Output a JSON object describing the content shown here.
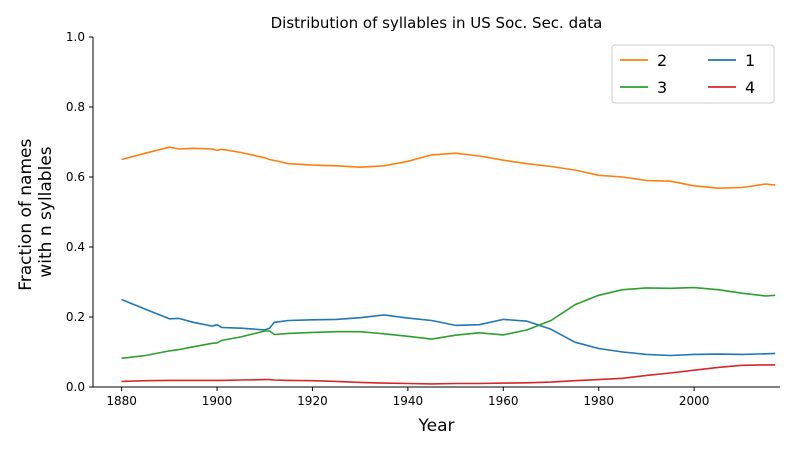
{
  "chart_data": {
    "type": "line",
    "title": "Distribution of syllables in US Soc. Sec. data",
    "xlabel": "Year",
    "ylabel_lines": [
      "Fraction of names",
      "with n syllables"
    ],
    "xlim": [
      1874,
      2018
    ],
    "ylim": [
      0,
      1
    ],
    "xticks": [
      1880,
      1900,
      1920,
      1940,
      1960,
      1980,
      2000
    ],
    "yticks": [
      "0.0",
      "0.2",
      "0.4",
      "0.6",
      "0.8",
      "1.0"
    ],
    "grid": false,
    "legend": {
      "placement": "top-right",
      "columns": 2,
      "order": [
        "2",
        "1",
        "3",
        "4"
      ]
    },
    "x": [
      1880,
      1885,
      1890,
      1892,
      1895,
      1899,
      1900,
      1901,
      1905,
      1910,
      1911,
      1912,
      1915,
      1920,
      1925,
      1930,
      1935,
      1940,
      1945,
      1950,
      1955,
      1960,
      1965,
      1970,
      1975,
      1980,
      1985,
      1990,
      1995,
      2000,
      2005,
      2010,
      2015,
      2017
    ],
    "series": [
      {
        "name": "2",
        "color": "#ff7f0e",
        "values": [
          0.65,
          0.668,
          0.685,
          0.68,
          0.682,
          0.68,
          0.676,
          0.679,
          0.67,
          0.655,
          0.65,
          0.647,
          0.638,
          0.634,
          0.632,
          0.628,
          0.632,
          0.645,
          0.663,
          0.668,
          0.66,
          0.648,
          0.638,
          0.63,
          0.62,
          0.605,
          0.6,
          0.59,
          0.588,
          0.575,
          0.568,
          0.57,
          0.58,
          0.577
        ]
      },
      {
        "name": "1",
        "color": "#1f77b4",
        "values": [
          0.25,
          0.222,
          0.195,
          0.196,
          0.185,
          0.174,
          0.178,
          0.17,
          0.168,
          0.163,
          0.168,
          0.185,
          0.19,
          0.192,
          0.193,
          0.198,
          0.206,
          0.197,
          0.19,
          0.176,
          0.178,
          0.193,
          0.188,
          0.165,
          0.128,
          0.11,
          0.1,
          0.093,
          0.09,
          0.093,
          0.094,
          0.093,
          0.095,
          0.096
        ]
      },
      {
        "name": "3",
        "color": "#2ca02c",
        "values": [
          0.082,
          0.09,
          0.103,
          0.107,
          0.115,
          0.125,
          0.126,
          0.133,
          0.143,
          0.16,
          0.16,
          0.15,
          0.153,
          0.156,
          0.158,
          0.158,
          0.152,
          0.145,
          0.137,
          0.148,
          0.155,
          0.149,
          0.163,
          0.19,
          0.235,
          0.262,
          0.278,
          0.283,
          0.282,
          0.284,
          0.278,
          0.268,
          0.26,
          0.262
        ]
      },
      {
        "name": "4",
        "color": "#d62728",
        "values": [
          0.016,
          0.018,
          0.019,
          0.019,
          0.019,
          0.019,
          0.019,
          0.019,
          0.02,
          0.021,
          0.021,
          0.02,
          0.019,
          0.018,
          0.016,
          0.013,
          0.011,
          0.01,
          0.009,
          0.01,
          0.01,
          0.011,
          0.012,
          0.014,
          0.018,
          0.021,
          0.025,
          0.033,
          0.04,
          0.048,
          0.056,
          0.062,
          0.063,
          0.063
        ]
      }
    ]
  }
}
